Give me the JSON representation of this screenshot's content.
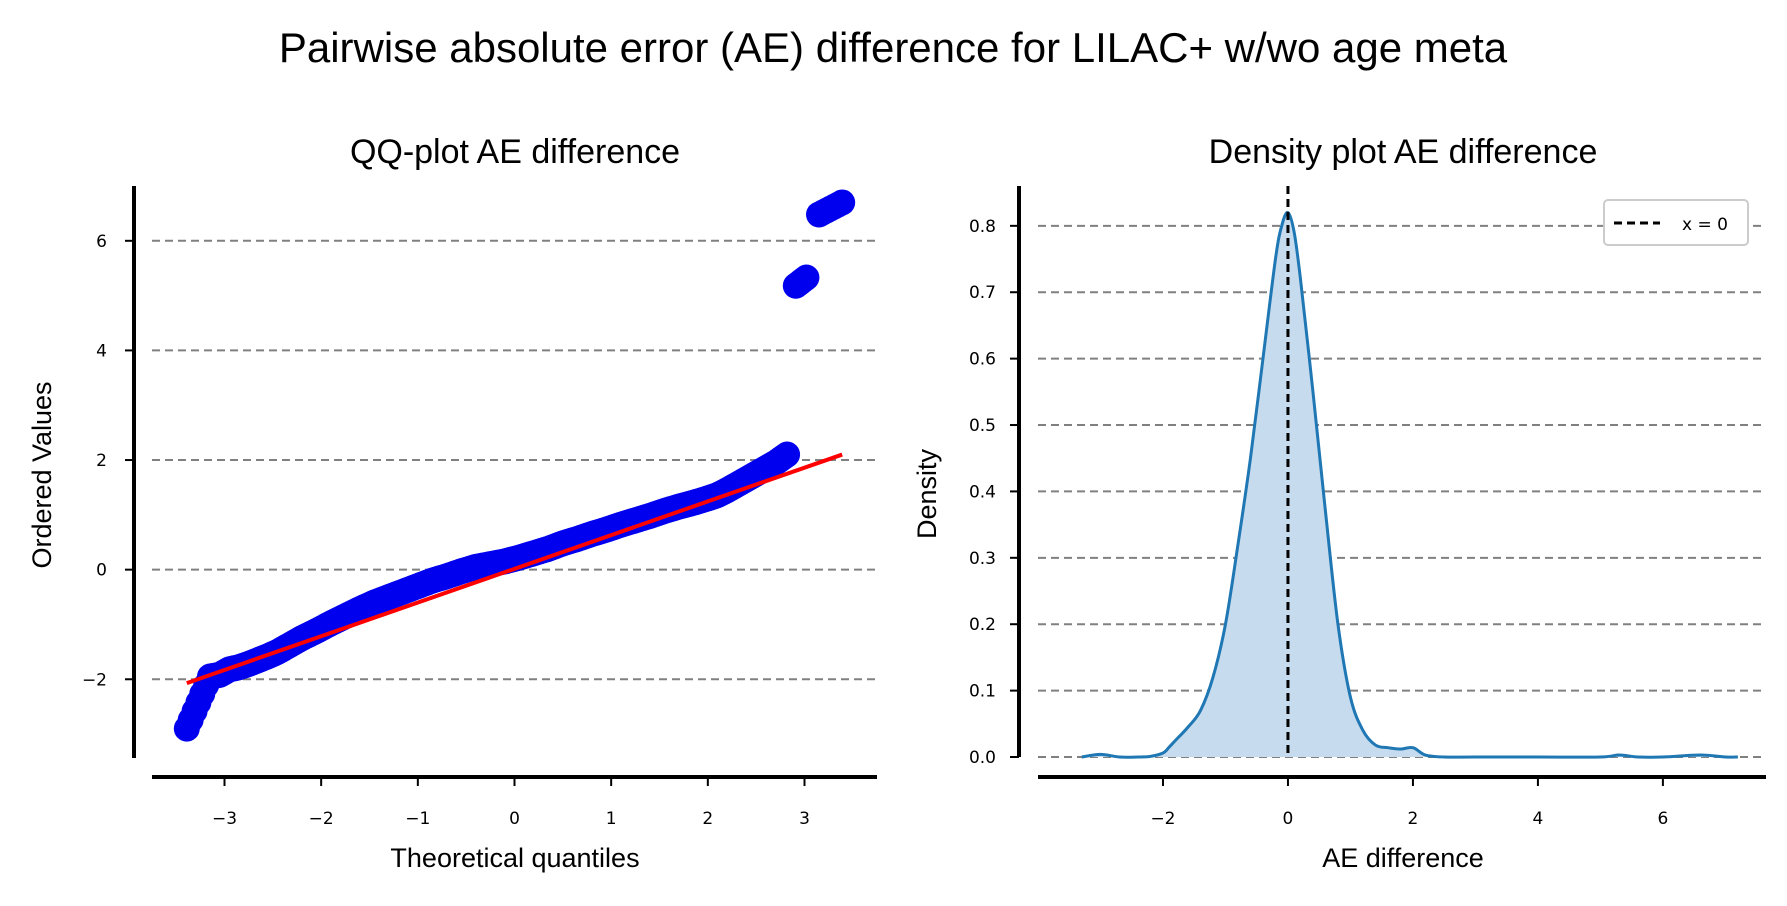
{
  "suptitle": "Pairwise absolute error (AE) difference for LILAC+ w/wo age meta",
  "chart_data": [
    {
      "type": "scatter",
      "title": "QQ-plot AE difference",
      "xlabel": "Theoretical quantiles",
      "ylabel": "Ordered Values",
      "xlim": [
        -3.75,
        3.75
      ],
      "ylim": [
        -3.4,
        7.0
      ],
      "xticks": [
        -3,
        -2,
        -1,
        0,
        1,
        2,
        3
      ],
      "xtick_labels": [
        "−3",
        "−2",
        "−1",
        "0",
        "1",
        "2",
        "3"
      ],
      "yticks": [
        -2,
        0,
        2,
        4,
        6
      ],
      "ytick_labels": [
        "−2",
        "0",
        "2",
        "4",
        "6"
      ],
      "grid": "y-dashed",
      "series": [
        {
          "kind": "points",
          "color": "#0000ee",
          "x": [
            -3.39,
            -3.15,
            -3.05,
            -2.95,
            -2.85,
            -2.75,
            -2.65,
            -2.55,
            -2.45,
            -2.35,
            -2.2,
            -2.05,
            -1.9,
            -1.75,
            -1.6,
            -1.45,
            -1.3,
            -1.15,
            -1.0,
            -0.85,
            -0.7,
            -0.55,
            -0.4,
            -0.25,
            -0.1,
            0.05,
            0.2,
            0.35,
            0.5,
            0.65,
            0.8,
            0.95,
            1.1,
            1.25,
            1.4,
            1.55,
            1.7,
            1.85,
            2.0,
            2.1,
            2.2,
            2.3,
            2.4,
            2.5,
            2.6,
            2.7,
            2.82,
            2.91,
            3.02,
            3.15,
            3.39
          ],
          "y": [
            -2.9,
            -1.95,
            -1.92,
            -1.82,
            -1.78,
            -1.72,
            -1.65,
            -1.58,
            -1.5,
            -1.4,
            -1.25,
            -1.12,
            -0.98,
            -0.85,
            -0.72,
            -0.6,
            -0.5,
            -0.4,
            -0.3,
            -0.2,
            -0.12,
            -0.03,
            0.05,
            0.1,
            0.15,
            0.22,
            0.3,
            0.38,
            0.48,
            0.56,
            0.65,
            0.73,
            0.82,
            0.9,
            0.98,
            1.07,
            1.15,
            1.22,
            1.3,
            1.36,
            1.45,
            1.55,
            1.65,
            1.75,
            1.85,
            1.95,
            2.1,
            5.18,
            5.33,
            6.48,
            6.7
          ]
        },
        {
          "kind": "line",
          "color": "#ff0000",
          "x": [
            -3.39,
            3.39
          ],
          "y": [
            -2.07,
            2.1
          ]
        }
      ]
    },
    {
      "type": "area",
      "title": "Density plot AE difference",
      "xlabel": "AE difference",
      "ylabel": "Density",
      "xlim": [
        -4.0,
        7.65
      ],
      "ylim": [
        0,
        0.86
      ],
      "xticks": [
        -2,
        0,
        2,
        4,
        6
      ],
      "xtick_labels": [
        "−2",
        "0",
        "2",
        "4",
        "6"
      ],
      "yticks": [
        0.0,
        0.1,
        0.2,
        0.3,
        0.4,
        0.5,
        0.6,
        0.7,
        0.8
      ],
      "ytick_labels": [
        "0.0",
        "0.1",
        "0.2",
        "0.3",
        "0.4",
        "0.5",
        "0.6",
        "0.7",
        "0.8"
      ],
      "grid": "y-dashed",
      "legend": {
        "position": "top-right",
        "entries": [
          "x = 0"
        ]
      },
      "vline": {
        "x": 0,
        "label": "x = 0",
        "color": "#000000"
      },
      "series": [
        {
          "color": "#1f77b4",
          "fill": "#c6dbee",
          "x": [
            -3.3,
            -3.0,
            -2.7,
            -2.4,
            -2.2,
            -2.0,
            -1.9,
            -1.8,
            -1.6,
            -1.4,
            -1.2,
            -1.0,
            -0.8,
            -0.6,
            -0.4,
            -0.2,
            -0.1,
            0.0,
            0.1,
            0.2,
            0.4,
            0.6,
            0.8,
            1.0,
            1.2,
            1.4,
            1.6,
            1.8,
            2.0,
            2.2,
            2.5,
            3.0,
            4.0,
            5.0,
            5.3,
            5.6,
            6.0,
            6.6,
            7.0,
            7.2
          ],
          "y": [
            0.0,
            0.004,
            0.0,
            0.0,
            0.001,
            0.006,
            0.015,
            0.025,
            0.045,
            0.07,
            0.12,
            0.2,
            0.32,
            0.45,
            0.6,
            0.75,
            0.8,
            0.82,
            0.79,
            0.72,
            0.55,
            0.37,
            0.2,
            0.09,
            0.04,
            0.018,
            0.014,
            0.012,
            0.014,
            0.003,
            0.0,
            0.0,
            0.0,
            0.0,
            0.003,
            0.0,
            0.0,
            0.003,
            0.0,
            0.0
          ]
        }
      ]
    }
  ]
}
